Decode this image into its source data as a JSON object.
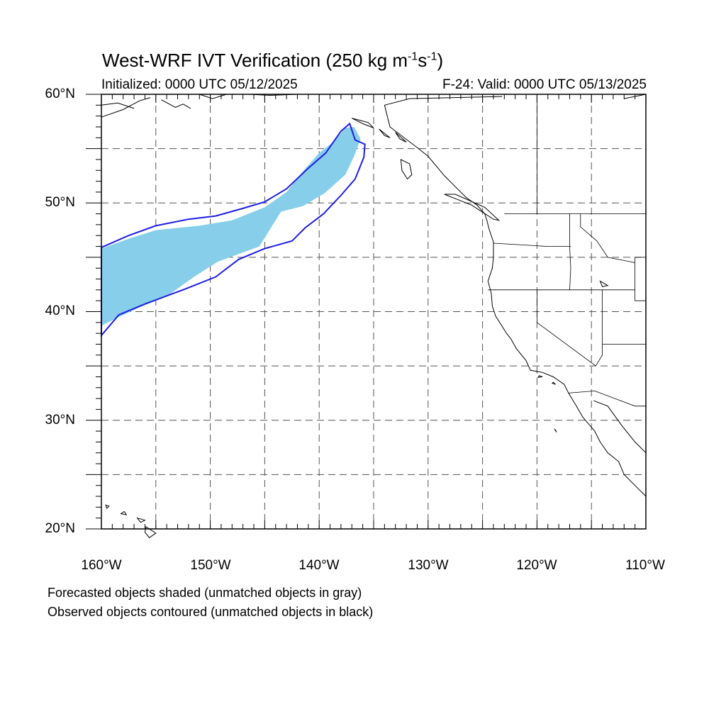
{
  "title": {
    "main": "West-WRF IVT Verification (250 kg m",
    "exp1": "-1",
    "mid": "s",
    "exp2": "-1",
    "end": ")"
  },
  "subtitle": {
    "left": "Initialized: 0000 UTC 05/12/2025",
    "right": "F-24: Valid: 0000 UTC 05/13/2025"
  },
  "lat_labels": [
    "60°N",
    "50°N",
    "40°N",
    "30°N",
    "20°N"
  ],
  "lon_labels": [
    "160°W",
    "150°W",
    "140°W",
    "130°W",
    "120°W",
    "110°W"
  ],
  "footnotes": [
    "Forecasted objects shaded (unmatched objects in gray)",
    "Observed objects contoured (unmatched objects in black)"
  ],
  "map": {
    "extent": {
      "lon_min": -160,
      "lon_max": -110,
      "lat_min": 20,
      "lat_max": 60
    },
    "grid_lon_step": 5,
    "grid_lat_step": 5,
    "colors": {
      "forecast_fill": "#87ceeb",
      "observed_contour": "#1e1ee6",
      "coast": "#000000",
      "grid": "#555555"
    },
    "forecast_object": [
      [
        -160,
        45.8
      ],
      [
        -157.5,
        46.7
      ],
      [
        -155,
        47.5
      ],
      [
        -151,
        47.9
      ],
      [
        -148,
        48.4
      ],
      [
        -145,
        49.6
      ],
      [
        -143,
        51.0
      ],
      [
        -141.5,
        52.9
      ],
      [
        -140,
        54.6
      ],
      [
        -138.6,
        55.7
      ],
      [
        -137.6,
        56.9
      ],
      [
        -136.8,
        57.0
      ],
      [
        -136.2,
        55.9
      ],
      [
        -136.8,
        54.3
      ],
      [
        -137.6,
        52.6
      ],
      [
        -139.5,
        50.9
      ],
      [
        -141.5,
        49.7
      ],
      [
        -143.5,
        49.2
      ],
      [
        -145.5,
        46.0
      ],
      [
        -149.3,
        44.6
      ],
      [
        -151.5,
        43.2
      ],
      [
        -154,
        41.4
      ],
      [
        -156.5,
        40.4
      ],
      [
        -158.6,
        39.4
      ],
      [
        -160,
        38.7
      ]
    ],
    "observed_object": [
      [
        -160,
        45.9
      ],
      [
        -157.5,
        47.0
      ],
      [
        -155,
        47.9
      ],
      [
        -152,
        48.5
      ],
      [
        -149.5,
        48.8
      ],
      [
        -147,
        49.5
      ],
      [
        -145,
        50.1
      ],
      [
        -143,
        51.3
      ],
      [
        -141,
        53.2
      ],
      [
        -139.4,
        54.6
      ],
      [
        -138,
        56.6
      ],
      [
        -137.2,
        57.3
      ],
      [
        -136.7,
        55.8
      ],
      [
        -135.8,
        55.4
      ],
      [
        -135.9,
        54.2
      ],
      [
        -136.7,
        52.2
      ],
      [
        -138,
        50.7
      ],
      [
        -139.6,
        49.0
      ],
      [
        -141.3,
        47.7
      ],
      [
        -142.5,
        46.5
      ],
      [
        -145,
        45.8
      ],
      [
        -147.4,
        44.8
      ],
      [
        -149.5,
        43.2
      ],
      [
        -152.5,
        42.0
      ],
      [
        -156,
        40.7
      ],
      [
        -158.4,
        39.7
      ],
      [
        -160,
        37.8
      ]
    ],
    "coastline": [
      [
        -123.2,
        59.8
      ],
      [
        -131.7,
        59.6
      ],
      [
        -134,
        59.0
      ],
      [
        -133.5,
        57.0
      ],
      [
        -131.0,
        55.1
      ],
      [
        -130.0,
        54.3
      ],
      [
        -128.5,
        52.5
      ],
      [
        -127.5,
        51.5
      ],
      [
        -126.5,
        50.5
      ],
      [
        -125.5,
        49.8
      ],
      [
        -124.8,
        49.0
      ],
      [
        -124.6,
        48.4
      ],
      [
        -124.4,
        47.6
      ],
      [
        -124.0,
        46.4
      ],
      [
        -124.0,
        45.0
      ],
      [
        -124.1,
        44.0
      ],
      [
        -124.5,
        42.8
      ],
      [
        -124.2,
        41.7
      ],
      [
        -124.1,
        40.5
      ],
      [
        -123.8,
        39.6
      ],
      [
        -122.8,
        38.0
      ],
      [
        -122.4,
        37.5
      ],
      [
        -121.9,
        36.6
      ],
      [
        -121.0,
        35.5
      ],
      [
        -120.6,
        34.6
      ],
      [
        -119.5,
        34.4
      ],
      [
        -118.5,
        34.0
      ],
      [
        -117.5,
        33.3
      ],
      [
        -117.1,
        32.5
      ],
      [
        -116.5,
        31.5
      ],
      [
        -115.8,
        30.3
      ],
      [
        -114.7,
        29.0
      ],
      [
        -114.2,
        28.0
      ],
      [
        -113.5,
        27.0
      ],
      [
        -112.5,
        26.2
      ],
      [
        -112.0,
        25.0
      ],
      [
        -111.0,
        24.0
      ],
      [
        -110.0,
        23.0
      ]
    ],
    "mainland_gulf_coast": [
      [
        -114.8,
        31.8
      ],
      [
        -113.5,
        31.3
      ],
      [
        -112.2,
        29.5
      ],
      [
        -111.0,
        28.0
      ],
      [
        -110.0,
        27.0
      ]
    ],
    "state_borders": [
      [
        [
          -124.5,
          42.0
        ],
        [
          -111.0,
          42.0
        ]
      ],
      [
        [
          -123.0,
          49.0
        ],
        [
          -110.0,
          49.0
        ]
      ],
      [
        [
          -120.0,
          42.0
        ],
        [
          -120.0,
          39.0
        ],
        [
          -114.6,
          35.0
        ]
      ],
      [
        [
          -117.0,
          49.0
        ],
        [
          -117.0,
          46.0
        ],
        [
          -116.9,
          44.0
        ],
        [
          -117.0,
          42.0
        ]
      ],
      [
        [
          -124.0,
          46.3
        ],
        [
          -119.0,
          46.0
        ],
        [
          -116.9,
          46.0
        ]
      ],
      [
        [
          -114.0,
          42.0
        ],
        [
          -114.0,
          36.0
        ],
        [
          -114.6,
          35.0
        ]
      ],
      [
        [
          -117.1,
          32.5
        ],
        [
          -114.7,
          32.7
        ],
        [
          -111.0,
          31.3
        ],
        [
          -110.0,
          31.3
        ]
      ],
      [
        [
          -114.0,
          37.0
        ],
        [
          -110.0,
          37.0
        ]
      ],
      [
        [
          -111.0,
          45.0
        ],
        [
          -110.0,
          45.0
        ]
      ],
      [
        [
          -111.0,
          45.0
        ],
        [
          -111.0,
          41.0
        ],
        [
          -110.0,
          41.0
        ]
      ],
      [
        [
          -116.0,
          49.0
        ],
        [
          -116.0,
          47.8
        ],
        [
          -114.5,
          46.5
        ],
        [
          -113.5,
          45.0
        ],
        [
          -111.0,
          44.5
        ]
      ],
      [
        [
          -120.0,
          60.0
        ],
        [
          -120.0,
          49.0
        ]
      ]
    ],
    "islands": [
      [
        [
          -132.5,
          54.0
        ],
        [
          -131.7,
          53.6
        ],
        [
          -131.5,
          52.6
        ],
        [
          -131.9,
          52.2
        ],
        [
          -132.4,
          53.0
        ]
      ],
      [
        [
          -128.5,
          50.8
        ],
        [
          -126.0,
          49.8
        ],
        [
          -124.0,
          48.5
        ],
        [
          -123.5,
          48.4
        ],
        [
          -124.8,
          49.6
        ],
        [
          -127.5,
          50.8
        ]
      ],
      [
        [
          -155.9,
          20.2
        ],
        [
          -155.0,
          19.6
        ],
        [
          -155.6,
          19.2
        ],
        [
          -156.0,
          19.7
        ]
      ],
      [
        [
          -159.6,
          22.2
        ],
        [
          -159.3,
          22.1
        ],
        [
          -159.5,
          21.9
        ]
      ],
      [
        [
          -157.9,
          21.6
        ],
        [
          -157.7,
          21.3
        ],
        [
          -158.2,
          21.4
        ]
      ],
      [
        [
          -156.7,
          21.0
        ],
        [
          -156.0,
          20.8
        ],
        [
          -156.4,
          20.6
        ]
      ],
      [
        [
          -118.5,
          33.5
        ],
        [
          -118.3,
          33.3
        ],
        [
          -118.6,
          33.4
        ]
      ],
      [
        [
          -119.8,
          34.1
        ],
        [
          -119.5,
          34.0
        ],
        [
          -119.9,
          33.95
        ]
      ],
      [
        [
          -118.4,
          29.2
        ],
        [
          -118.2,
          28.9
        ],
        [
          -118.3,
          29.1
        ]
      ],
      [
        [
          -137.0,
          57.8
        ],
        [
          -135.5,
          57.4
        ],
        [
          -135.0,
          56.9
        ],
        [
          -136.0,
          57.3
        ]
      ],
      [
        [
          -134.5,
          56.8
        ],
        [
          -133.5,
          56.0
        ],
        [
          -134.0,
          56.2
        ]
      ],
      [
        [
          -133.0,
          56.5
        ],
        [
          -132.0,
          55.6
        ],
        [
          -132.6,
          55.9
        ]
      ],
      [
        [
          -114.2,
          42.8
        ],
        [
          -113.5,
          42.4
        ],
        [
          -114.0,
          42.3
        ]
      ]
    ],
    "alaska_fragments": [
      [
        [
          -160,
          59.0
        ],
        [
          -158.5,
          59.2
        ],
        [
          -157.0,
          58.7
        ]
      ],
      [
        [
          -160,
          57.9
        ],
        [
          -158.0,
          58.6
        ],
        [
          -156.5,
          59.4
        ],
        [
          -155.5,
          59.7
        ]
      ],
      [
        [
          -154.5,
          59.5
        ],
        [
          -153.2,
          58.8
        ],
        [
          -152.5,
          59.1
        ],
        [
          -151.8,
          58.7
        ]
      ],
      [
        [
          -151.0,
          60.0
        ],
        [
          -149.8,
          59.6
        ],
        [
          -148.5,
          60.0
        ]
      ],
      [
        [
          -146.5,
          60.0
        ],
        [
          -144.5,
          59.9
        ],
        [
          -142.0,
          60.0
        ]
      ],
      [
        [
          -112.0,
          59.6
        ],
        [
          -110.0,
          60.0
        ]
      ]
    ]
  }
}
